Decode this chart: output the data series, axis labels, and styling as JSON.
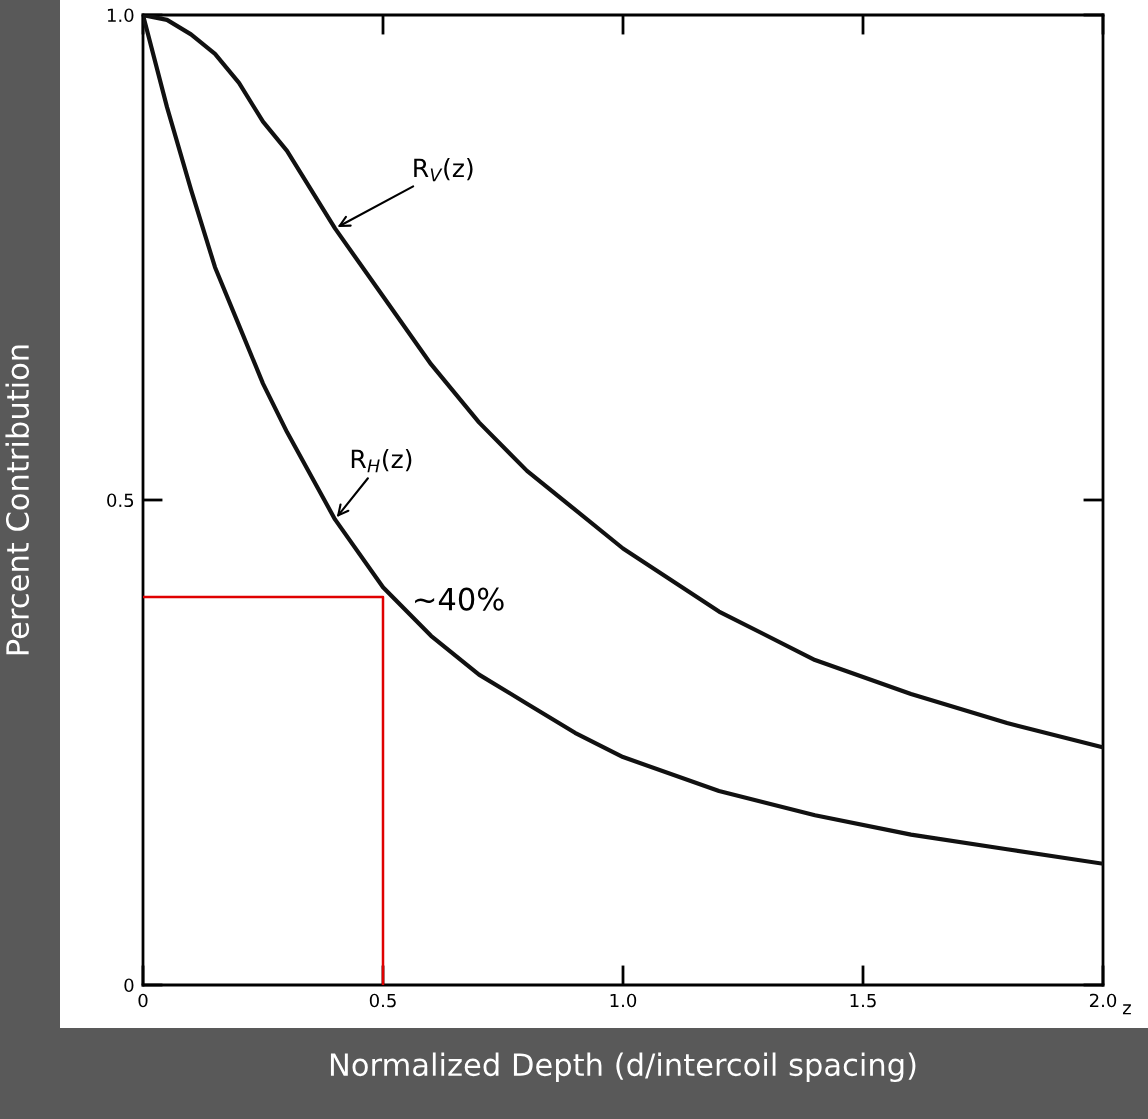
{
  "chart_data": {
    "type": "line",
    "xlabel": "Normalized Depth (d/intercoil spacing)",
    "ylabel": "Percent Contribution",
    "xlim": [
      0,
      2.0
    ],
    "ylim": [
      0,
      1.0
    ],
    "xticks": [
      0,
      0.5,
      {
        "value": 1.0,
        "label": "1.0"
      },
      1.5,
      {
        "value": 2.0,
        "label": "2.0"
      }
    ],
    "yticks": [
      0,
      0.5,
      {
        "value": 1.0,
        "label": "1.0"
      }
    ],
    "grid": false,
    "marker": "none",
    "line_style": "solid",
    "series": [
      {
        "color": "#111111",
        "x": [
          0,
          0.05,
          0.1,
          0.15,
          0.2,
          0.25,
          0.3,
          0.35,
          0.4,
          0.5,
          0.6,
          0.7,
          0.8,
          0.9,
          1.0,
          1.2,
          1.4,
          1.6,
          1.8,
          2.0
        ],
        "values": [
          1.0,
          0.995,
          0.98,
          0.96,
          0.93,
          0.89,
          0.86,
          0.82,
          0.78,
          0.71,
          0.64,
          0.58,
          0.53,
          0.49,
          0.45,
          0.385,
          0.335,
          0.3,
          0.27,
          0.245
        ]
      },
      {
        "color": "#111111",
        "x": [
          0,
          0.05,
          0.1,
          0.15,
          0.2,
          0.25,
          0.3,
          0.4,
          0.5,
          0.6,
          0.7,
          0.8,
          0.9,
          1.0,
          1.2,
          1.4,
          1.6,
          1.8,
          2.0
        ],
        "values": [
          1.0,
          0.905,
          0.82,
          0.74,
          0.68,
          0.62,
          0.57,
          0.48,
          0.41,
          0.36,
          0.32,
          0.29,
          0.26,
          0.235,
          0.2,
          0.175,
          0.155,
          0.14,
          0.125
        ]
      },
      {
        "color": "#e00000",
        "x": [
          0,
          0.5,
          0.5
        ],
        "values": [
          0.4,
          0.4,
          0
        ]
      }
    ],
    "annotations": [
      {
        "text": "R$_{V}$(z)",
        "x": 0.4,
        "y": 0.78
      },
      {
        "text": "R$_{H}$(z)",
        "x": 0.4,
        "y": 0.48
      },
      "~40%",
      "z"
    ]
  }
}
